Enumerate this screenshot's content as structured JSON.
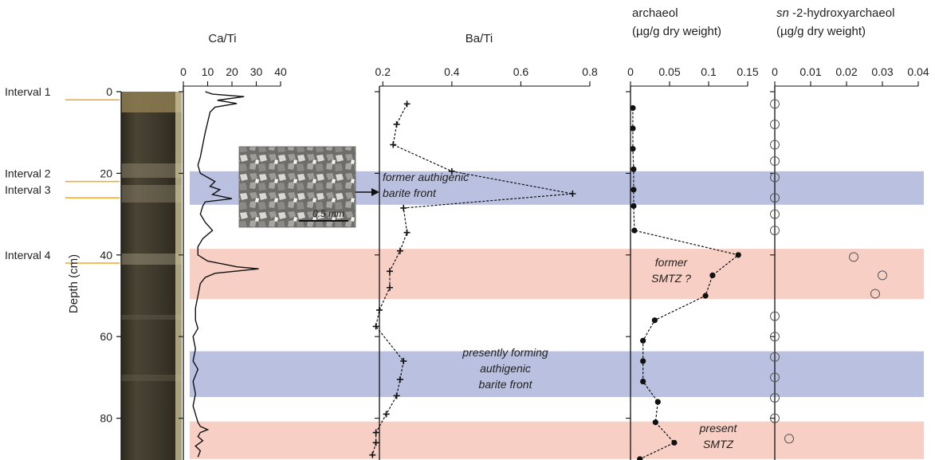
{
  "colors": {
    "band_blue": "#b9c0e0",
    "band_red": "#f8cfc4",
    "interval_line": "#f5a623",
    "marker": "#111111",
    "core_dark": "#3c372c",
    "core_light": "#9e9378"
  },
  "depth_axis": {
    "label": "Depth (cm)",
    "ticks": [
      0,
      20,
      40,
      60,
      80
    ],
    "range": [
      0,
      90
    ]
  },
  "intervals": [
    {
      "label": "Interval 1",
      "depth": 2
    },
    {
      "label": "Interval 2",
      "depth": 22
    },
    {
      "label": "Interval 3",
      "depth": 26
    },
    {
      "label": "Interval 4",
      "depth": 42
    }
  ],
  "bands": [
    {
      "from": 19.5,
      "to": 27.7,
      "color": "blue"
    },
    {
      "from": 38.5,
      "to": 50.8,
      "color": "red"
    },
    {
      "from": 63.6,
      "to": 74.8,
      "color": "blue"
    },
    {
      "from": 80.8,
      "to": 90,
      "color": "red"
    }
  ],
  "micro_image": {
    "scale_label": "0.5 mm"
  },
  "annotations": {
    "barite_former": [
      "former authigenic",
      "barite front"
    ],
    "smtz_former": [
      "former",
      "SMTZ ?"
    ],
    "barite_present": [
      "presently forming",
      "authigenic",
      "barite front"
    ],
    "smtz_present": [
      "present",
      "SMTZ"
    ]
  },
  "chart_data": [
    {
      "type": "line",
      "title": "Ca/Ti",
      "xlim": [
        0,
        40
      ],
      "xticks": [
        0,
        10,
        20,
        30,
        40
      ],
      "series": [
        {
          "points": [
            [
              9,
              0
            ],
            [
              12,
              0.6
            ],
            [
              25,
              1.2
            ],
            [
              14,
              2.1
            ],
            [
              22,
              2.9
            ],
            [
              13,
              3.8
            ],
            [
              11,
              5
            ],
            [
              10,
              7.5
            ],
            [
              9,
              10
            ],
            [
              8,
              13
            ],
            [
              7,
              16
            ],
            [
              6,
              18
            ],
            [
              7,
              20
            ],
            [
              10,
              21
            ],
            [
              13,
              22
            ],
            [
              11,
              23.2
            ],
            [
              15,
              24
            ],
            [
              12,
              25.2
            ],
            [
              20,
              26.2
            ],
            [
              9,
              27
            ],
            [
              8,
              28
            ],
            [
              7,
              30
            ],
            [
              9,
              32
            ],
            [
              12,
              34
            ],
            [
              8,
              36
            ],
            [
              6,
              38
            ],
            [
              6,
              40
            ],
            [
              10,
              41.5
            ],
            [
              17,
              42.3
            ],
            [
              22,
              42.9
            ],
            [
              31,
              43.4
            ],
            [
              13,
              44.5
            ],
            [
              9,
              45.5
            ],
            [
              7,
              47
            ],
            [
              6,
              50
            ],
            [
              5,
              53
            ],
            [
              5,
              56
            ],
            [
              6,
              58
            ],
            [
              4,
              60
            ],
            [
              5,
              63
            ],
            [
              4,
              66
            ],
            [
              6,
              68
            ],
            [
              4,
              71
            ],
            [
              5,
              74
            ],
            [
              4,
              77
            ],
            [
              5,
              79
            ],
            [
              6,
              81
            ],
            [
              7,
              82
            ],
            [
              10,
              82.8
            ],
            [
              7,
              83.5
            ],
            [
              6,
              84.5
            ],
            [
              8,
              85.5
            ],
            [
              5,
              86.8
            ],
            [
              7,
              88
            ],
            [
              6,
              89.5
            ]
          ]
        }
      ]
    },
    {
      "type": "line",
      "title": "Ba/Ti",
      "xlim": [
        0.1,
        0.8
      ],
      "xticks": [
        0.2,
        0.4,
        0.6,
        0.8
      ],
      "series": [
        {
          "marker": "plus",
          "points": [
            [
              0.27,
              3
            ],
            [
              0.24,
              8
            ],
            [
              0.23,
              13
            ],
            [
              0.4,
              19.5
            ],
            [
              0.75,
              25
            ],
            [
              0.26,
              28.5
            ],
            [
              0.27,
              34.5
            ],
            [
              0.25,
              39
            ],
            [
              0.22,
              44
            ],
            [
              0.22,
              48
            ],
            [
              0.19,
              53.5
            ],
            [
              0.18,
              57.5
            ],
            [
              0.26,
              66
            ],
            [
              0.25,
              70.5
            ],
            [
              0.24,
              74.5
            ],
            [
              0.21,
              79
            ],
            [
              0.18,
              83.5
            ],
            [
              0.18,
              86
            ],
            [
              0.17,
              89
            ]
          ]
        }
      ]
    },
    {
      "type": "line",
      "title": "archaeol",
      "xlabel": "(µg/g dry weight)",
      "xlim": [
        0,
        0.15
      ],
      "xticks": [
        "0",
        "0.05",
        "0.1",
        "0.15"
      ],
      "series": [
        {
          "marker": "filled-circle",
          "points": [
            [
              0.003,
              4
            ],
            [
              0.003,
              9
            ],
            [
              0.003,
              14
            ],
            [
              0.004,
              19
            ],
            [
              0.004,
              24
            ],
            [
              0.004,
              28
            ],
            [
              0.005,
              34
            ],
            [
              0.138,
              40
            ],
            [
              0.105,
              45
            ],
            [
              0.096,
              50
            ],
            [
              0.031,
              56
            ],
            [
              0.016,
              61
            ],
            [
              0.016,
              66
            ],
            [
              0.016,
              71
            ],
            [
              0.035,
              76
            ],
            [
              0.032,
              81
            ],
            [
              0.056,
              86
            ],
            [
              0.012,
              90
            ]
          ]
        }
      ]
    },
    {
      "type": "scatter",
      "title": "sn -2-hydroxyarchaeol",
      "xlabel": "(µg/g dry weight)",
      "xlim": [
        0,
        0.04
      ],
      "xticks": [
        "0",
        "0.01",
        "0.02",
        "0.03",
        "0.04"
      ],
      "series": [
        {
          "marker": "open-circle",
          "points": [
            [
              0,
              3
            ],
            [
              0,
              8
            ],
            [
              0,
              13
            ],
            [
              0,
              17
            ],
            [
              0,
              21
            ],
            [
              0,
              26
            ],
            [
              0,
              30
            ],
            [
              0,
              34
            ],
            [
              0.022,
              40.5
            ],
            [
              0.03,
              45
            ],
            [
              0.028,
              49.5
            ],
            [
              0,
              55
            ],
            [
              0,
              60
            ],
            [
              0,
              65
            ],
            [
              0,
              70
            ],
            [
              0,
              75
            ],
            [
              0,
              80
            ],
            [
              0.004,
              85
            ]
          ]
        }
      ]
    }
  ]
}
